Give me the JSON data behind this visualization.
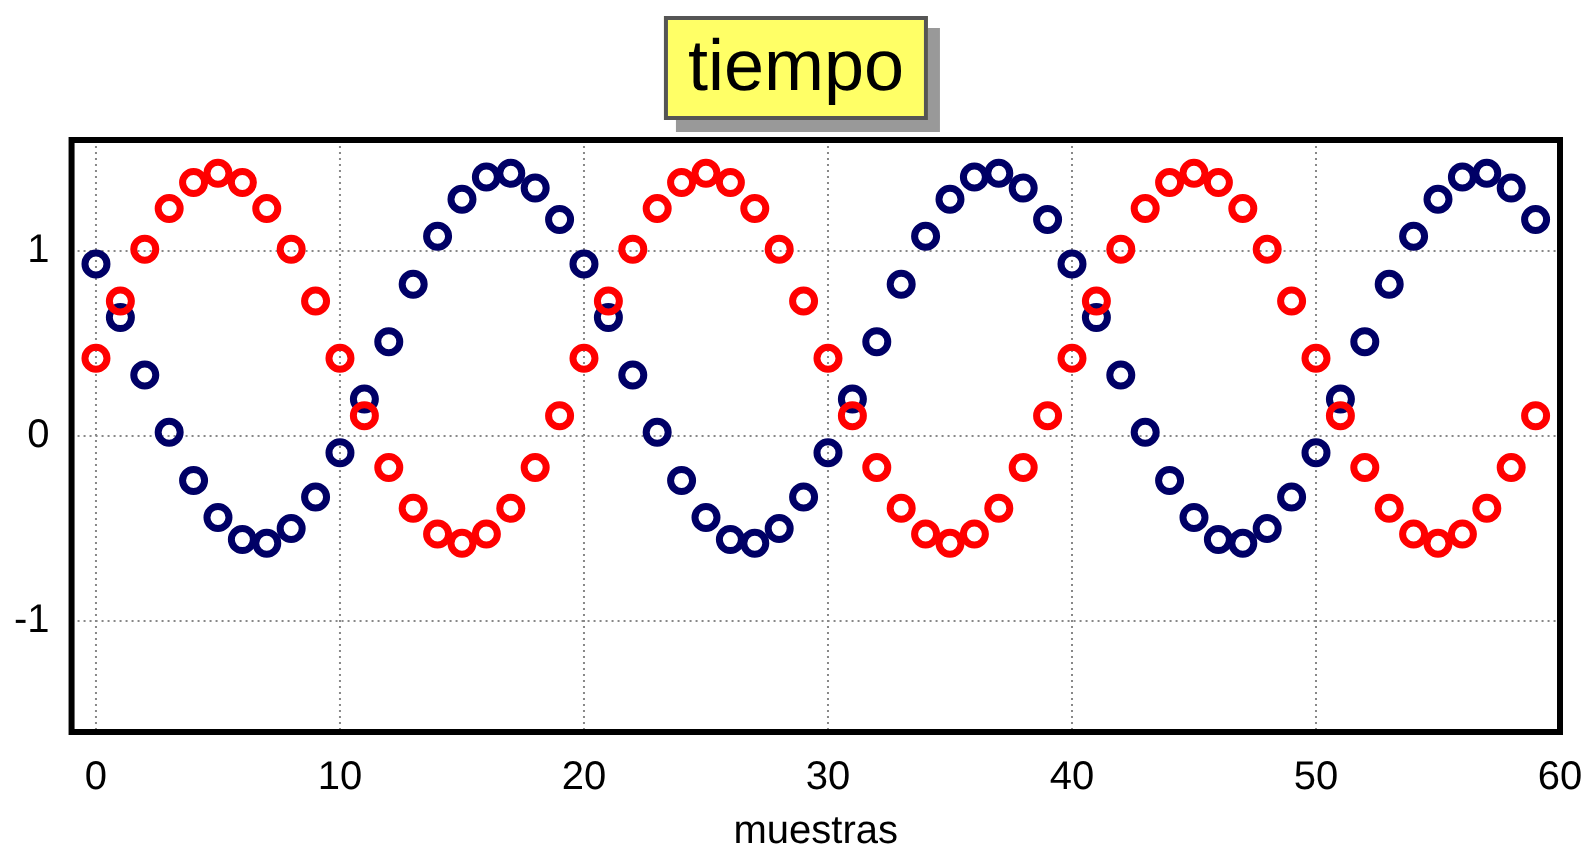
{
  "chart_data": {
    "type": "scatter",
    "title": "tiempo",
    "xlabel": "muestras",
    "x": [
      0,
      1,
      2,
      3,
      4,
      5,
      6,
      7,
      8,
      9,
      10,
      11,
      12,
      13,
      14,
      15,
      16,
      17,
      18,
      19,
      20,
      21,
      22,
      23,
      24,
      25,
      26,
      27,
      28,
      29,
      30,
      31,
      32,
      33,
      34,
      35,
      36,
      37,
      38,
      39,
      40,
      41,
      42,
      43,
      44,
      45,
      46,
      47,
      48,
      49,
      50,
      51,
      52,
      53,
      54,
      55,
      56,
      57,
      58,
      59
    ],
    "series": [
      {
        "color": "#ff0000",
        "values": [
          0.42,
          0.73,
          1.01,
          1.23,
          1.37,
          1.42,
          1.37,
          1.23,
          1.01,
          0.73,
          0.42,
          0.11,
          -0.17,
          -0.39,
          -0.53,
          -0.58,
          -0.53,
          -0.39,
          -0.17,
          0.11,
          0.42,
          0.73,
          1.01,
          1.23,
          1.37,
          1.42,
          1.37,
          1.23,
          1.01,
          0.73,
          0.42,
          0.11,
          -0.17,
          -0.39,
          -0.53,
          -0.58,
          -0.53,
          -0.39,
          -0.17,
          0.11,
          0.42,
          0.73,
          1.01,
          1.23,
          1.37,
          1.42,
          1.37,
          1.23,
          1.01,
          0.73,
          0.42,
          0.11,
          -0.17,
          -0.39,
          -0.53,
          -0.58,
          -0.53,
          -0.39,
          -0.17,
          0.11
        ]
      },
      {
        "color": "#000066",
        "values": [
          0.93,
          0.64,
          0.33,
          0.02,
          -0.24,
          -0.44,
          -0.56,
          -0.58,
          -0.5,
          -0.33,
          -0.09,
          0.2,
          0.51,
          0.82,
          1.08,
          1.28,
          1.4,
          1.42,
          1.34,
          1.17,
          0.93,
          0.64,
          0.33,
          0.02,
          -0.24,
          -0.44,
          -0.56,
          -0.58,
          -0.5,
          -0.33,
          -0.09,
          0.2,
          0.51,
          0.82,
          1.08,
          1.28,
          1.4,
          1.42,
          1.34,
          1.17,
          0.93,
          0.64,
          0.33,
          0.02,
          -0.24,
          -0.44,
          -0.56,
          -0.58,
          -0.5,
          -0.33,
          -0.09,
          0.2,
          0.51,
          0.82,
          1.08,
          1.28,
          1.4,
          1.42,
          1.34,
          1.17
        ]
      }
    ],
    "xlim": [
      -1,
      60
    ],
    "xticks": [
      0,
      10,
      20,
      30,
      40,
      50,
      60
    ],
    "ylim": [
      -1.6,
      1.6
    ],
    "yticks": [
      -1,
      0,
      1
    ],
    "grid": true,
    "legend": false,
    "marker": "circle"
  }
}
